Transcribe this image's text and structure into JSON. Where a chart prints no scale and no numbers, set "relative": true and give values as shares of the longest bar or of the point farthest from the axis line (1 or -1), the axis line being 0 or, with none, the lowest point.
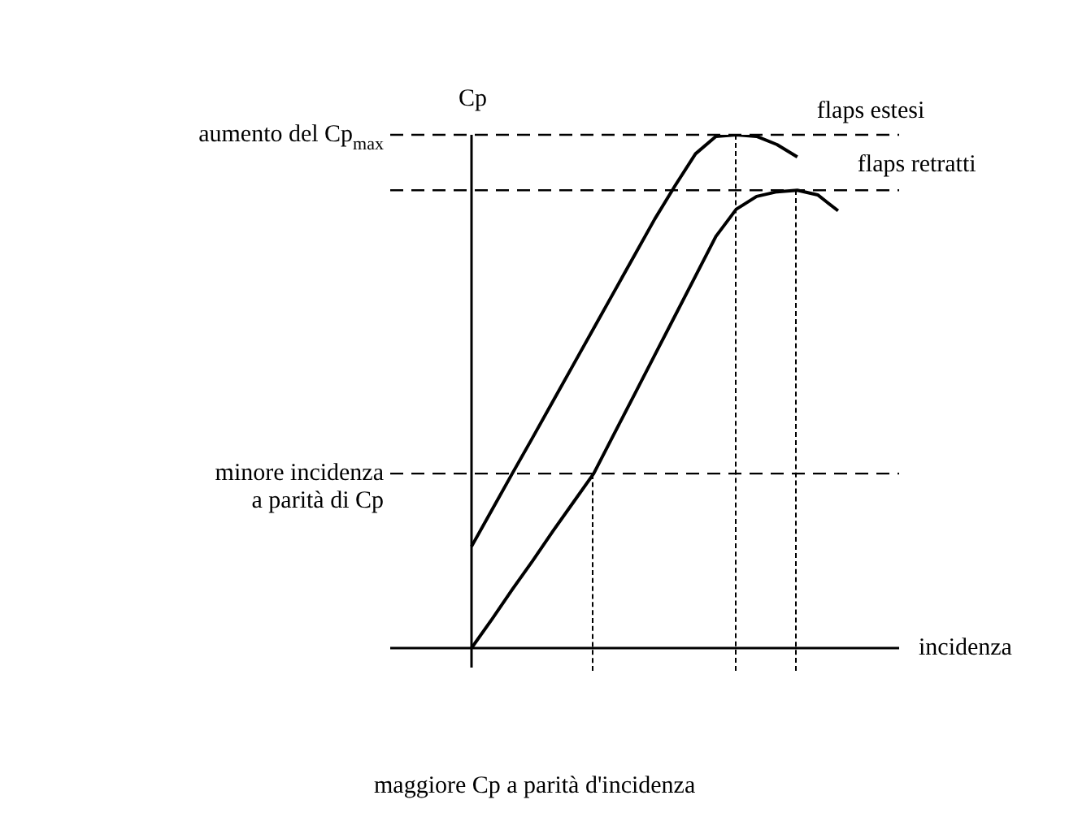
{
  "chart_data": {
    "type": "line",
    "relative": true,
    "ylabel": "Cp",
    "xlabel": "incidenza",
    "categories": [
      null,
      null,
      null,
      null,
      null,
      null,
      null,
      null,
      null,
      null,
      null,
      null,
      null,
      null,
      null,
      null,
      null,
      null,
      null,
      null,
      null,
      null
    ],
    "series": [
      {
        "name": "flaps estesi",
        "color": "#000000",
        "values": [
          0.198,
          0.269,
          0.34,
          0.41,
          0.481,
          0.552,
          0.623,
          0.694,
          0.765,
          0.836,
          0.901,
          0.963,
          0.997,
          1,
          0.997,
          0.981,
          0.957,
          null,
          null,
          null,
          null,
          null
        ]
      },
      {
        "name": "flaps retratti",
        "color": "#000000",
        "values": [
          0,
          0.056,
          0.114,
          0.17,
          0.228,
          0.284,
          0.34,
          0.417,
          0.494,
          0.571,
          0.648,
          0.725,
          0.802,
          0.855,
          0.88,
          0.889,
          0.892,
          0.883,
          0.852,
          null,
          null,
          null
        ]
      }
    ],
    "ref_lines": [
      {
        "axis": "y",
        "value": 1,
        "label": "aumento del Cp$_{max}$",
        "line_style": "dashed"
      },
      {
        "axis": "y",
        "value": 0.892,
        "line_style": "dashed"
      },
      {
        "axis": "y",
        "value": 0.34,
        "label": "minore incidenza\na parità di Cp",
        "line_style": "dashed"
      }
    ],
    "annotations": [
      "maggiore Cp a parità d'incidenza"
    ],
    "grid": false,
    "legend": false,
    "marker": "none",
    "line_style": "solid"
  }
}
